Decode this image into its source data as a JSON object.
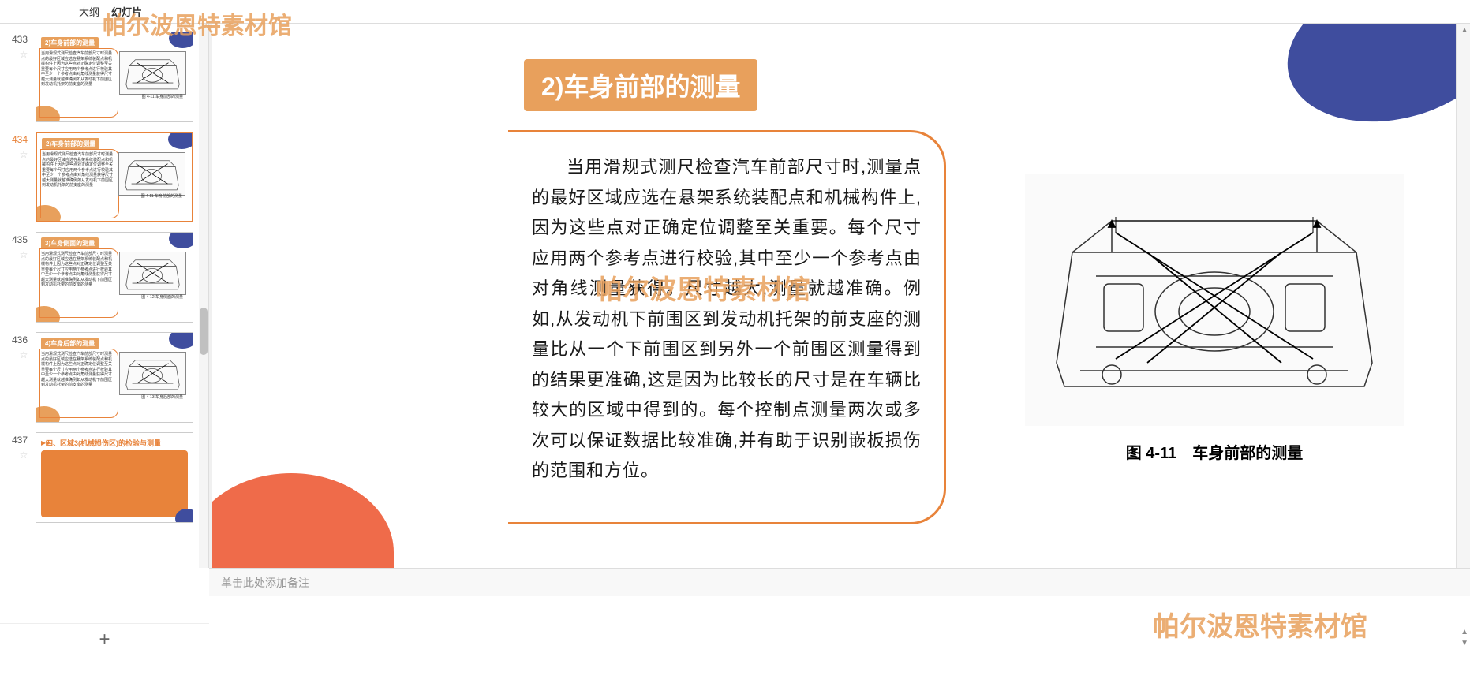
{
  "tabs": {
    "outline": "大纲",
    "slides": "幻灯片"
  },
  "watermark": "帕尔波恩特素材馆",
  "thumbnails": [
    {
      "num": "433",
      "title": "2)车身前部的测量",
      "caption": "图 4-11 车身前部的测量"
    },
    {
      "num": "434",
      "title": "2)车身前部的测量",
      "caption": "图 4-11 车身前部的测量"
    },
    {
      "num": "435",
      "title": "3)车身侧面的测量",
      "caption": "图 4-12 车身侧面的测量"
    },
    {
      "num": "436",
      "title": "4)车身后部的测量",
      "caption": "图 4-13 车身后部的测量"
    },
    {
      "num": "437",
      "title": "四、区域3(机械损伤区)的检验与测量"
    }
  ],
  "active_thumb": 1,
  "slide": {
    "title": "2)车身前部的测量",
    "body": "当用滑规式测尺检查汽车前部尺寸时,测量点的最好区域应选在悬架系统装配点和机械构件上,因为这些点对正确定位调整至关重要。每个尺寸应用两个参考点进行校验,其中至少一个参考点由对角线测量获得。尺寸越大,测量就越准确。例如,从发动机下前围区到发动机托架的前支座的测量比从一个下前围区到另外一个前围区测量得到的结果更准确,这是因为比较长的尺寸是在车辆比较大的区域中得到的。每个控制点测量两次或多次可以保证数据比较准确,并有助于识别嵌板损伤的范围和方位。",
    "figure_caption": "图 4-11　车身前部的测量"
  },
  "notes_placeholder": "单击此处添加备注",
  "add_slide": "+",
  "colors": {
    "accent_orange": "#e8833a",
    "header_orange": "#e8a05c",
    "coral": "#ef6b4a",
    "navy": "#3f4d9e"
  }
}
